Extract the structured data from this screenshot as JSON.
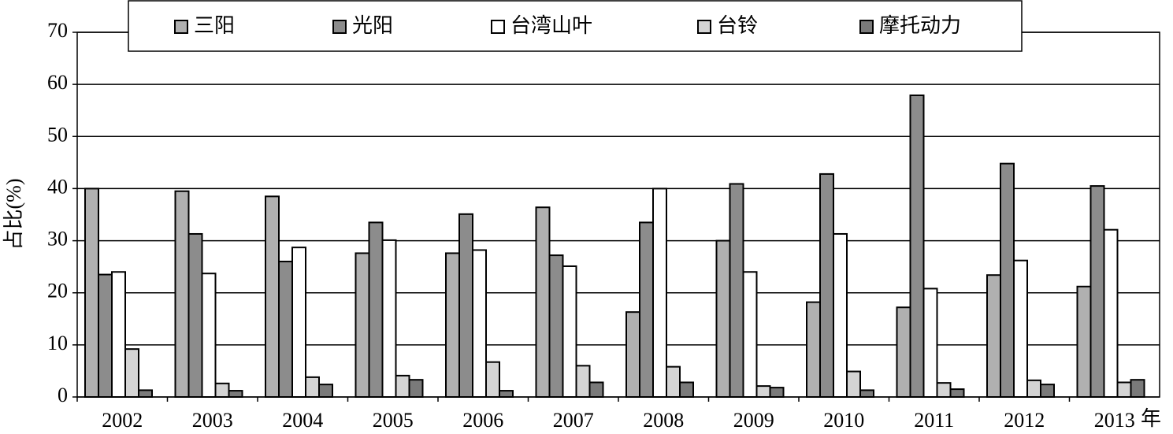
{
  "chart_data": {
    "type": "bar",
    "y_label": "占比(%)",
    "x_label": "年",
    "categories": [
      "2002",
      "2003",
      "2004",
      "2005",
      "2006",
      "2007",
      "2008",
      "2009",
      "2010",
      "2011",
      "2012",
      "2013"
    ],
    "series": [
      {
        "name": "三阳",
        "color": "#b0b0b0",
        "values": [
          40,
          39.5,
          38.5,
          27.6,
          27.6,
          36.4,
          16.3,
          30,
          18.2,
          17.2,
          23.4,
          21.2
        ]
      },
      {
        "name": "光阳",
        "color": "#8c8c8c",
        "values": [
          23.5,
          31.3,
          26,
          33.5,
          35.1,
          27.2,
          33.5,
          40.9,
          42.8,
          57.9,
          44.8,
          40.5
        ]
      },
      {
        "name": "台湾山叶",
        "color": "#ffffff",
        "values": [
          24,
          23.7,
          28.7,
          30.1,
          28.2,
          25.1,
          40,
          24,
          31.3,
          20.8,
          26.2,
          32.1
        ]
      },
      {
        "name": "台铃",
        "color": "#d4d4d4",
        "values": [
          9.2,
          2.6,
          3.8,
          4.1,
          6.7,
          6,
          5.8,
          2.1,
          4.9,
          2.7,
          3.2,
          2.8
        ]
      },
      {
        "name": "摩托动力",
        "color": "#7a7a7a",
        "values": [
          1.3,
          1.2,
          2.4,
          3.3,
          1.2,
          2.8,
          2.8,
          1.8,
          1.3,
          1.5,
          2.4,
          3.3
        ]
      }
    ],
    "ylim": [
      0,
      70
    ],
    "yticks": [
      0,
      10,
      20,
      30,
      40,
      50,
      60,
      70
    ],
    "grid": true
  }
}
